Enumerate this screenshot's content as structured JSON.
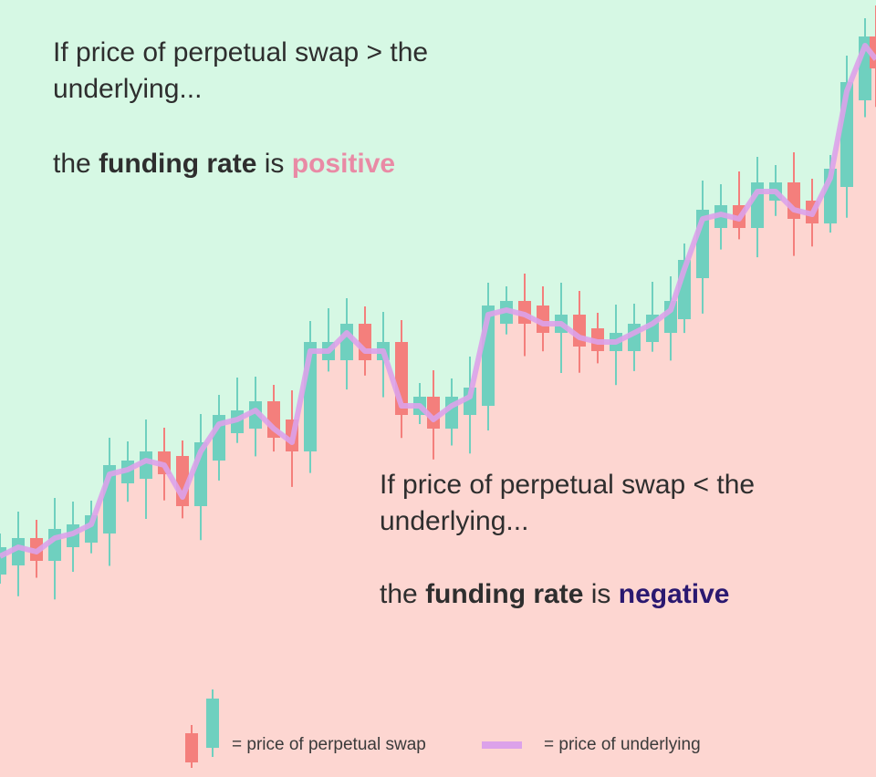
{
  "top": {
    "line1": "If price of perpetual swap > the",
    "line2": "underlying...",
    "prefix": "the",
    "term": "funding rate",
    "verb": "is",
    "state": "positive"
  },
  "bottom": {
    "line1": "If price of perpetual swap < the",
    "line2": "underlying...",
    "prefix": "the",
    "term": "funding rate",
    "verb": "is",
    "state": "negative"
  },
  "legend": {
    "swap": "= price of perpetual swap",
    "underlying": "= price of underlying"
  }
}
